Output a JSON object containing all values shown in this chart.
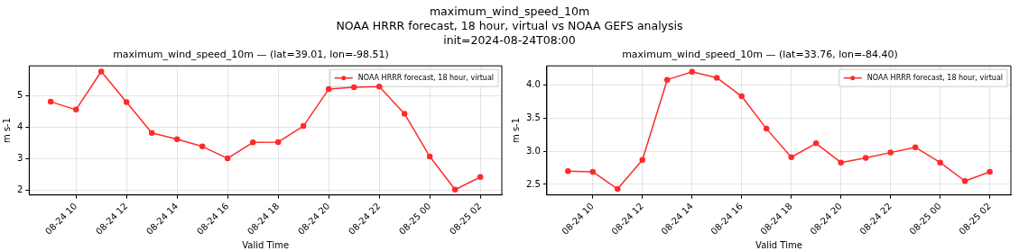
{
  "chart_data": [
    {
      "type": "other",
      "title": "maximum_wind_speed_10m",
      "subtitle": "NOAA HRRR forecast, 18 hour, virtual vs NOAA GEFS analysis",
      "annotations": [
        "init=2024-08-24T08:00"
      ]
    },
    {
      "type": "line",
      "title": "maximum_wind_speed_10m — (lat=39.01, lon=-98.51)",
      "xlabel": "Valid Time",
      "ylabel": "m s-1",
      "x": [
        "2024-08-24T09:00",
        "2024-08-24T10:00",
        "2024-08-24T11:00",
        "2024-08-24T12:00",
        "2024-08-24T13:00",
        "2024-08-24T14:00",
        "2024-08-24T15:00",
        "2024-08-24T16:00",
        "2024-08-24T17:00",
        "2024-08-24T18:00",
        "2024-08-24T19:00",
        "2024-08-24T20:00",
        "2024-08-24T21:00",
        "2024-08-24T22:00",
        "2024-08-24T23:00",
        "2024-08-25T00:00",
        "2024-08-25T01:00",
        "2024-08-25T02:00"
      ],
      "series": [
        {
          "name": "NOAA HRRR forecast, 18 hour, virtual",
          "color": "#ff2a2a",
          "values": [
            4.82,
            4.57,
            5.78,
            4.81,
            3.83,
            3.63,
            3.4,
            3.02,
            3.53,
            3.54,
            4.05,
            5.22,
            5.28,
            5.3,
            4.44,
            3.08,
            2.03,
            2.43
          ]
        }
      ],
      "xlim": [
        "2024-08-24T08:09",
        "2024-08-25T02:51"
      ],
      "xticks": [
        {
          "value": "2024-08-24T10:00",
          "label": "08-24 10"
        },
        {
          "value": "2024-08-24T12:00",
          "label": "08-24 12"
        },
        {
          "value": "2024-08-24T14:00",
          "label": "08-24 14"
        },
        {
          "value": "2024-08-24T16:00",
          "label": "08-24 16"
        },
        {
          "value": "2024-08-24T18:00",
          "label": "08-24 18"
        },
        {
          "value": "2024-08-24T20:00",
          "label": "08-24 20"
        },
        {
          "value": "2024-08-24T22:00",
          "label": "08-24 22"
        },
        {
          "value": "2024-08-25T00:00",
          "label": "08-25 00"
        },
        {
          "value": "2024-08-25T02:00",
          "label": "08-25 02"
        }
      ],
      "ylim": [
        1.86,
        5.96
      ],
      "yticks": [
        2,
        3,
        4,
        5
      ],
      "grid": true,
      "legend": "top right",
      "marker": "circle",
      "line_style": "solid"
    },
    {
      "type": "line",
      "title": "maximum_wind_speed_10m — (lat=33.76, lon=-84.40)",
      "xlabel": "Valid Time",
      "ylabel": "m s-1",
      "x": [
        "2024-08-24T09:00",
        "2024-08-24T10:00",
        "2024-08-24T11:00",
        "2024-08-24T12:00",
        "2024-08-24T13:00",
        "2024-08-24T14:00",
        "2024-08-24T15:00",
        "2024-08-24T16:00",
        "2024-08-24T17:00",
        "2024-08-24T18:00",
        "2024-08-24T19:00",
        "2024-08-24T20:00",
        "2024-08-24T21:00",
        "2024-08-24T22:00",
        "2024-08-24T23:00",
        "2024-08-25T00:00",
        "2024-08-25T01:00",
        "2024-08-25T02:00"
      ],
      "series": [
        {
          "name": "NOAA HRRR forecast, 18 hour, virtual",
          "color": "#ff2a2a",
          "values": [
            2.7,
            2.69,
            2.43,
            2.87,
            4.08,
            4.2,
            4.11,
            3.83,
            3.34,
            2.91,
            3.12,
            2.83,
            2.9,
            2.98,
            3.06,
            2.83,
            2.55,
            2.69
          ]
        }
      ],
      "xlim": [
        "2024-08-24T08:09",
        "2024-08-25T02:51"
      ],
      "xticks": [
        {
          "value": "2024-08-24T10:00",
          "label": "08-24 10"
        },
        {
          "value": "2024-08-24T12:00",
          "label": "08-24 12"
        },
        {
          "value": "2024-08-24T14:00",
          "label": "08-24 14"
        },
        {
          "value": "2024-08-24T16:00",
          "label": "08-24 16"
        },
        {
          "value": "2024-08-24T18:00",
          "label": "08-24 18"
        },
        {
          "value": "2024-08-24T20:00",
          "label": "08-24 20"
        },
        {
          "value": "2024-08-24T22:00",
          "label": "08-24 22"
        },
        {
          "value": "2024-08-25T00:00",
          "label": "08-25 00"
        },
        {
          "value": "2024-08-25T02:00",
          "label": "08-25 02"
        }
      ],
      "ylim": [
        2.34,
        4.29
      ],
      "yticks": [
        2.5,
        {
          "value": 3,
          "label": "3.0"
        },
        3.5,
        {
          "value": 4,
          "label": "4.0"
        }
      ],
      "grid": true,
      "legend": "top right",
      "marker": "circle",
      "line_style": "solid"
    }
  ]
}
